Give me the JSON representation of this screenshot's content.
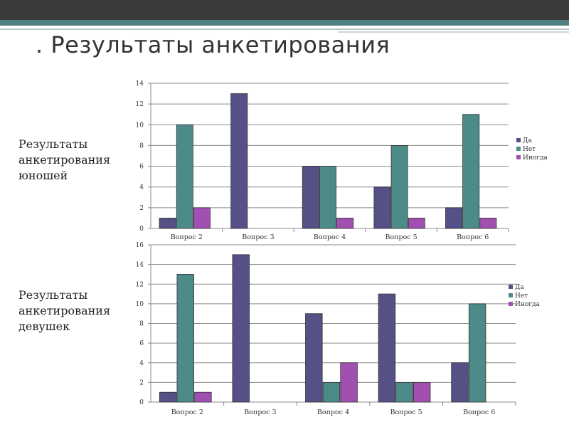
{
  "title": ". Результаты анкетирования",
  "labels": {
    "boys": [
      "Результаты",
      "анкетирования",
      "юношей"
    ],
    "girls": [
      "Результаты",
      "анкетирования",
      "девушек"
    ]
  },
  "colors": {
    "da": "#555086",
    "net": "#4c8b87",
    "inogda": "#a14fb0"
  },
  "chart_data": [
    {
      "type": "bar",
      "categories": [
        "Вопрос 2",
        "Вопрос 3",
        "Вопрос 4",
        "Вопрос 5",
        "Вопрос 6"
      ],
      "series": [
        {
          "name": "Да",
          "values": [
            1,
            13,
            6,
            4,
            2
          ]
        },
        {
          "name": "Нет",
          "values": [
            10,
            0,
            6,
            8,
            11
          ]
        },
        {
          "name": "Иногда",
          "values": [
            2,
            0,
            1,
            1,
            1
          ]
        }
      ],
      "ylim": [
        0,
        14
      ],
      "yticks": [
        0,
        2,
        4,
        6,
        8,
        10,
        12,
        14
      ],
      "grid": true,
      "legend": "right"
    },
    {
      "type": "bar",
      "categories": [
        "Вопрос 2",
        "Вопрос 3",
        "Вопрос 4",
        "Вопрос 5",
        "Вопрос 6"
      ],
      "series": [
        {
          "name": "Да",
          "values": [
            1,
            15,
            9,
            11,
            4
          ]
        },
        {
          "name": "Нет",
          "values": [
            13,
            0,
            2,
            2,
            10
          ]
        },
        {
          "name": "Иногда",
          "values": [
            1,
            0,
            4,
            2,
            0
          ]
        }
      ],
      "ylim": [
        0,
        16
      ],
      "yticks": [
        0,
        2,
        4,
        6,
        8,
        10,
        12,
        14,
        16
      ],
      "grid": true,
      "legend": "right"
    }
  ]
}
